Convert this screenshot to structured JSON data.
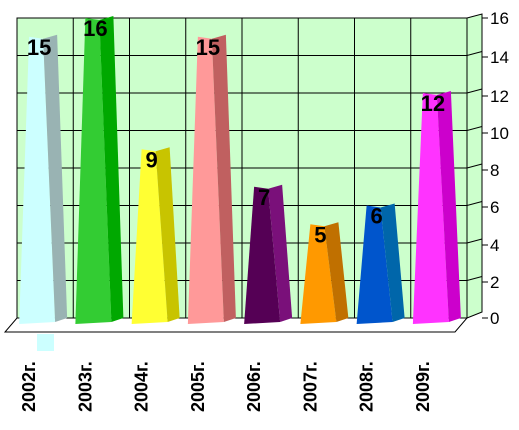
{
  "chart_data": {
    "type": "bar",
    "style": "3d-pyramid-wedge",
    "categories": [
      "2002г.",
      "2003г.",
      "2004г.",
      "2005г.",
      "2006г.",
      "2007г.",
      "2008г.",
      "2009г."
    ],
    "values": [
      15,
      16,
      9,
      15,
      7,
      5,
      6,
      12
    ],
    "y_ticks": [
      "0",
      "2",
      "4",
      "6",
      "8",
      "10",
      "12",
      "14",
      "16"
    ],
    "ylim": [
      0,
      16
    ],
    "y_axis_side": "right",
    "grid": true,
    "legend": "none",
    "colors": {
      "wall": "#ccffcc",
      "grid": "#000000",
      "bars": [
        {
          "front": "#ccffff",
          "side": "#99b3b3"
        },
        {
          "front": "#33cc33",
          "side": "#00a800"
        },
        {
          "front": "#ffff33",
          "side": "#c8c400"
        },
        {
          "front": "#ff9999",
          "side": "#c06060"
        },
        {
          "front": "#550055",
          "side": "#7a107a"
        },
        {
          "front": "#ff9900",
          "side": "#c07000"
        },
        {
          "front": "#0055cc",
          "side": "#0066aa"
        },
        {
          "front": "#ff33ff",
          "side": "#cc00cc"
        }
      ]
    }
  }
}
